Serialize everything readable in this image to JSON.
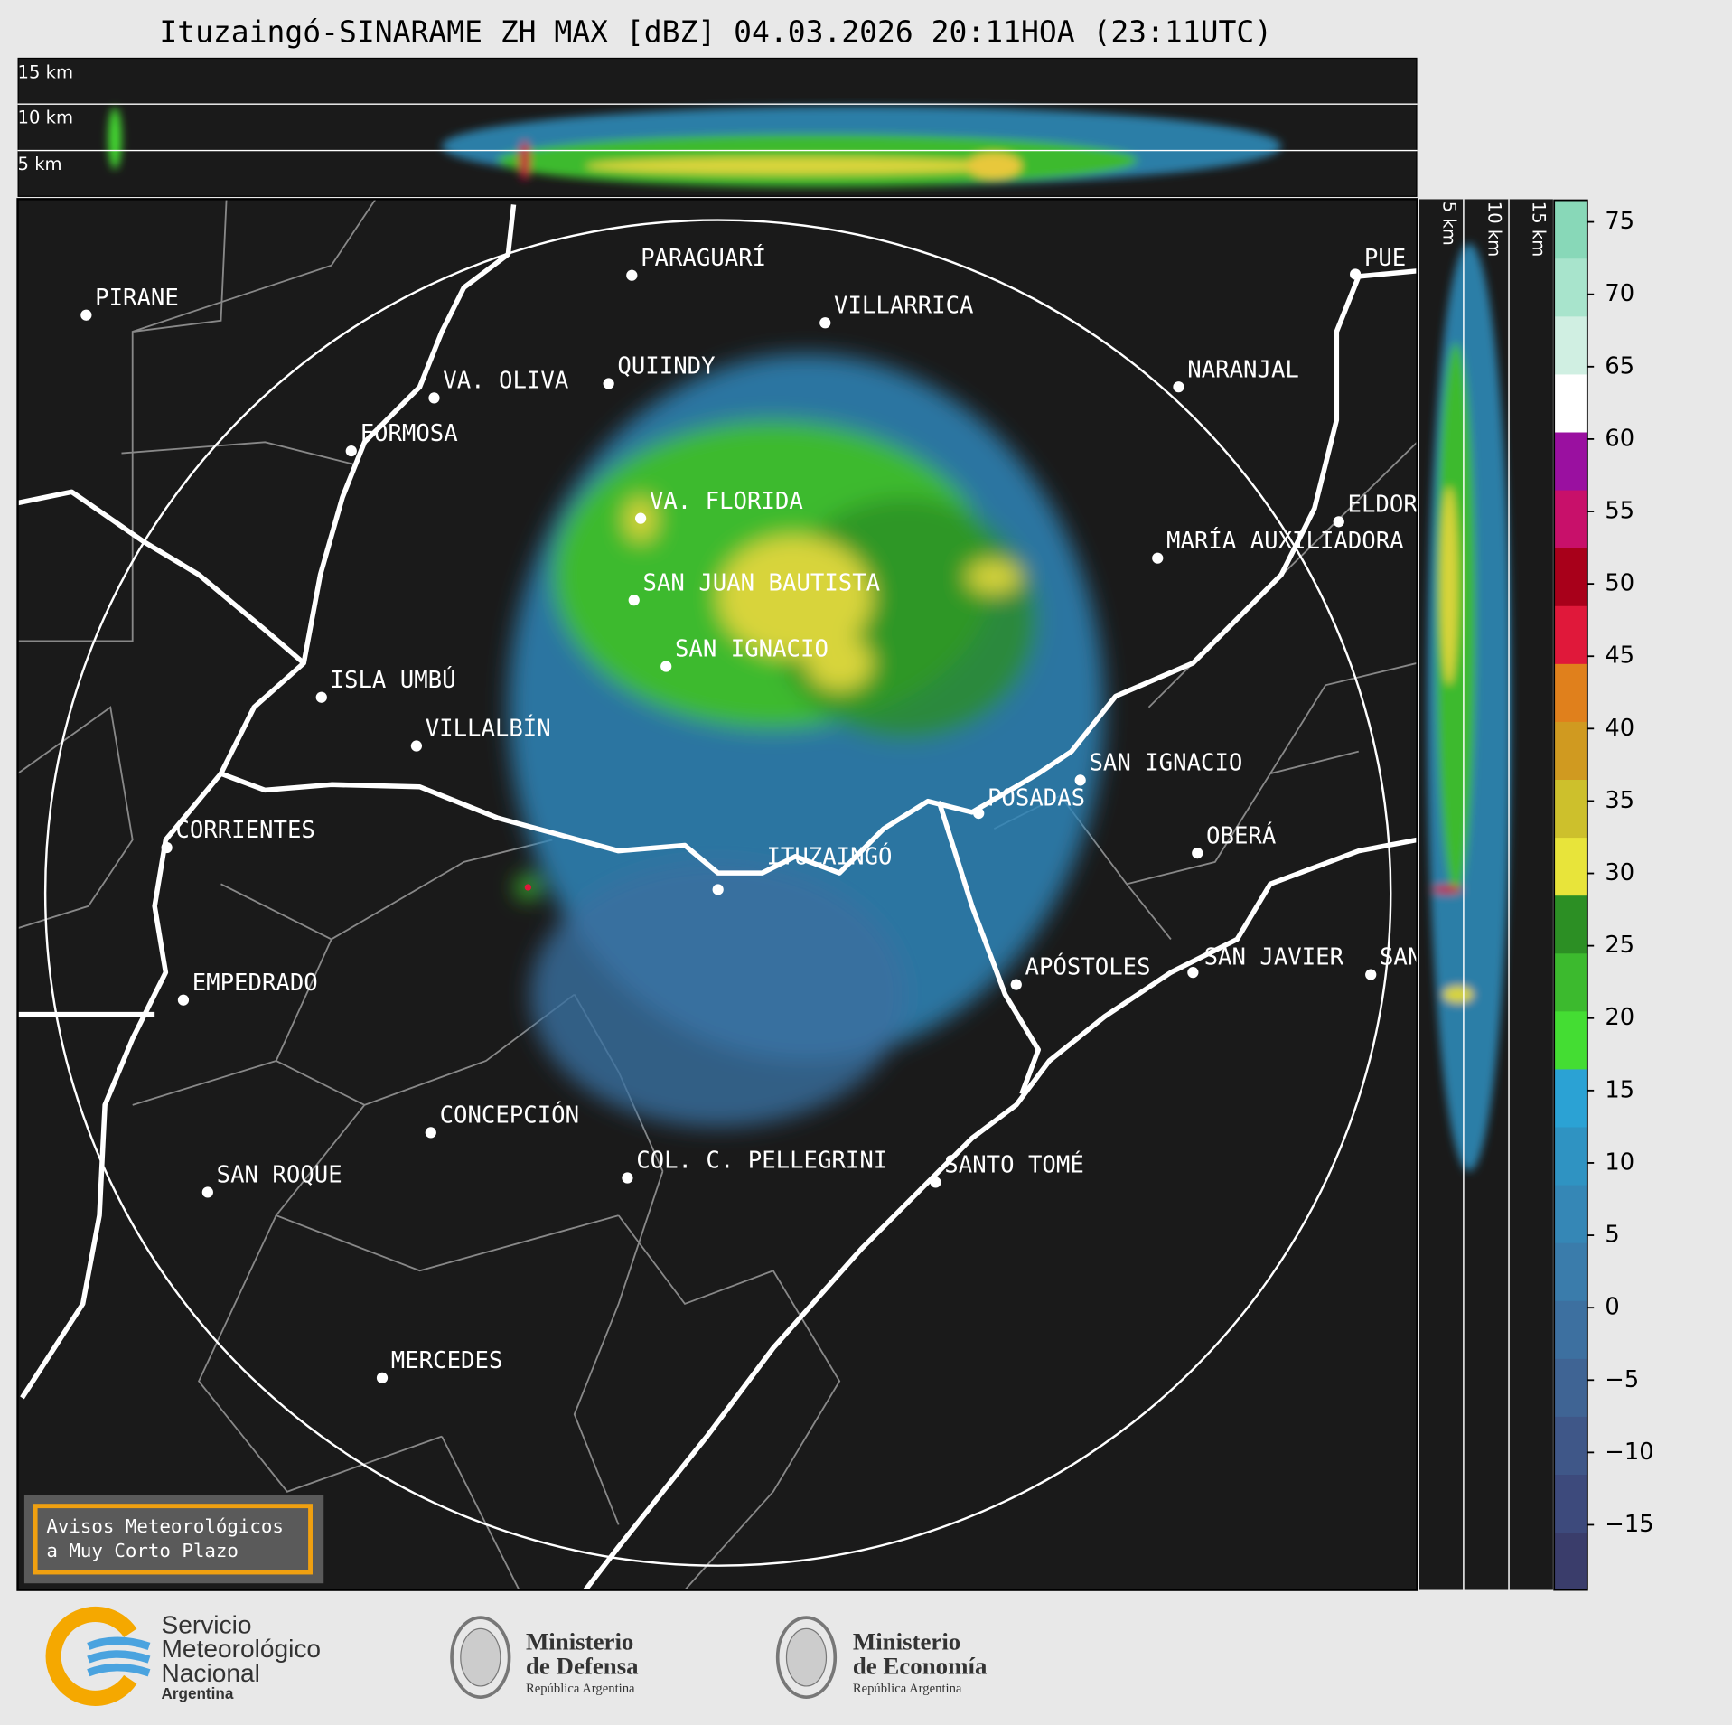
{
  "title": "Ituzaingó-SINARAME ZH MAX [dBZ] 04.03.2026 20:11HOA (23:11UTC)",
  "height_labels": [
    "15 km",
    "10 km",
    "5 km"
  ],
  "cities": [
    "PIRANE",
    "PARAGUARÍ",
    "VILLARRICA",
    "QUIINDY",
    "VA. OLIVA",
    "FORMOSA",
    "NARANJAL",
    "VA. FLORIDA",
    "ELDORADO",
    "MARÍA AUXILIADORA",
    "SAN JUAN BAUTISTA",
    "SAN IGNACIO",
    "ISLA UMBÚ",
    "VILLALBÍN",
    "SAN IGNACIO",
    "POSADAS",
    "CORRIENTES",
    "ITUZAINGÓ",
    "OBERÁ",
    "APÓSTOLES",
    "SAN JAVIER",
    "SAN",
    "PUE",
    "EMPEDRADO",
    "CONCEPCIÓN",
    "COL. C. PELLEGRINI",
    "SANTO TOMÉ",
    "SAN ROQUE",
    "MERCEDES"
  ],
  "colorbar": {
    "lim": [
      -19.5,
      76.5
    ],
    "ticks": [
      75,
      70,
      65,
      60,
      55,
      50,
      45,
      40,
      35,
      30,
      25,
      20,
      15,
      10,
      5,
      0,
      {
        "value": -5,
        "label": "−5"
      },
      {
        "value": -10,
        "label": "−10"
      },
      {
        "value": -15,
        "label": "−15"
      }
    ],
    "colors": [
      "#3a3d6b",
      "#3d4a7c",
      "#3f5788",
      "#3f6494",
      "#3d70a0",
      "#3a7cab",
      "#3587b6",
      "#2f93c2",
      "#2ba2d4",
      "#44dd33",
      "#3cba2e",
      "#2c8f24",
      "#e8e43a",
      "#cdc02c",
      "#d09a20",
      "#e0801c",
      "#e0183a",
      "#a8001a",
      "#c8106a",
      "#9a10a0",
      "#ffffff",
      "#d0efe2",
      "#a8e4cc",
      "#88d8b8"
    ]
  },
  "warning": [
    "Avisos Meteorológicos",
    "a Muy Corto Plazo"
  ],
  "footer": {
    "smn": [
      "Servicio",
      "Meteorológico",
      "Nacional",
      "Argentina"
    ],
    "defensa": [
      "Ministerio",
      "de Defensa",
      "República Argentina"
    ],
    "economia": [
      "Ministerio",
      "de Economía",
      "República Argentina"
    ]
  }
}
